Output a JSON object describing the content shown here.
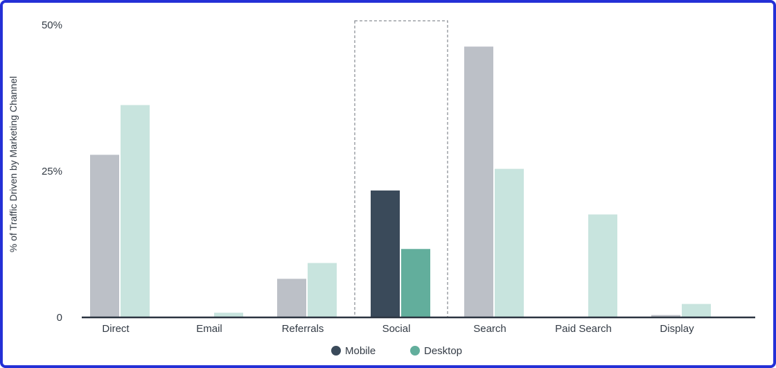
{
  "chart_data": {
    "type": "bar",
    "ylabel": "% of Traffic Driven by Marketing Channel",
    "ylim": [
      0,
      50
    ],
    "yticks": [
      {
        "value": 0,
        "label": "0"
      },
      {
        "value": 25,
        "label": "25%"
      },
      {
        "value": 50,
        "label": "50%"
      }
    ],
    "categories": [
      "Direct",
      "Email",
      "Referrals",
      "Social",
      "Search",
      "Paid Search",
      "Display"
    ],
    "highlight_category": "Social",
    "series": [
      {
        "name": "Mobile",
        "values": [
          27.8,
          0,
          6.6,
          21.7,
          46.3,
          0,
          0.4
        ]
      },
      {
        "name": "Desktop",
        "values": [
          36.3,
          0.8,
          9.3,
          11.7,
          25.4,
          17.6,
          2.3
        ]
      }
    ],
    "colors": {
      "mobile_highlight": "#3a4a5a",
      "desktop_highlight": "#62ae9c",
      "mobile_muted": "#bcc0c7",
      "desktop_muted": "#c8e4de",
      "axis": "#2b3440"
    },
    "legend": [
      {
        "name": "Mobile",
        "color": "#3a4a5a"
      },
      {
        "name": "Desktop",
        "color": "#62ae9c"
      }
    ],
    "legend_position": "bottom-center"
  }
}
